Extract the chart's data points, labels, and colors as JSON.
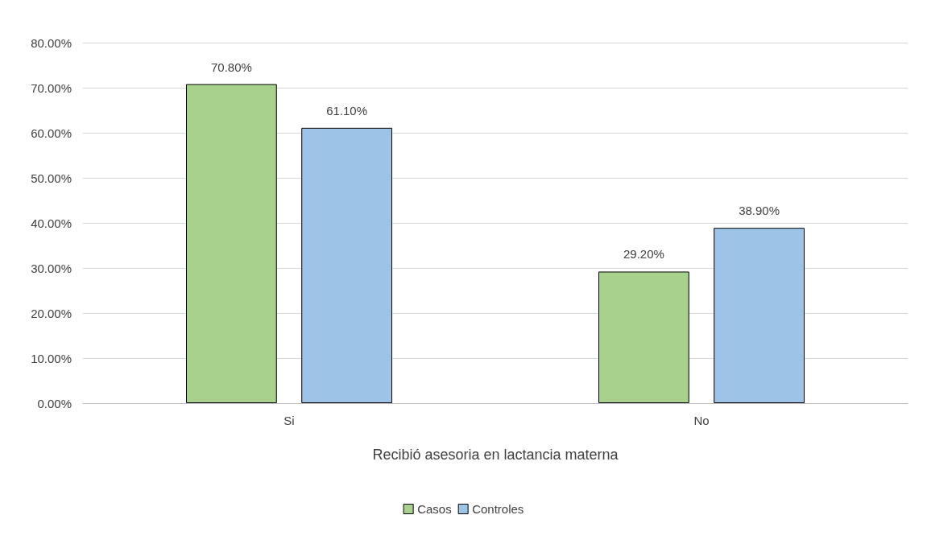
{
  "chart_data": {
    "type": "bar",
    "xlabel": "Recibió asesoria en lactancia materna",
    "categories": [
      "Si",
      "No"
    ],
    "series": [
      {
        "name": "Casos",
        "color": "#a9d18e",
        "values": [
          70.8,
          29.2
        ],
        "value_labels": [
          "70.80%",
          "29.20%"
        ]
      },
      {
        "name": "Controles",
        "color": "#9dc3e6",
        "values": [
          61.1,
          38.9
        ],
        "value_labels": [
          "61.10%",
          "38.90%"
        ]
      }
    ],
    "ylim": [
      0,
      80
    ],
    "yticks": [
      {
        "value": 0,
        "label": "0.00%"
      },
      {
        "value": 10,
        "label": "10.00%"
      },
      {
        "value": 20,
        "label": "20.00%"
      },
      {
        "value": 30,
        "label": "30.00%"
      },
      {
        "value": 40,
        "label": "40.00%"
      },
      {
        "value": 50,
        "label": "50.00%"
      },
      {
        "value": 60,
        "label": "60.00%"
      },
      {
        "value": 70,
        "label": "70.00%"
      },
      {
        "value": 80,
        "label": "80.00%"
      }
    ],
    "grid": "y",
    "legend": "bottom"
  }
}
